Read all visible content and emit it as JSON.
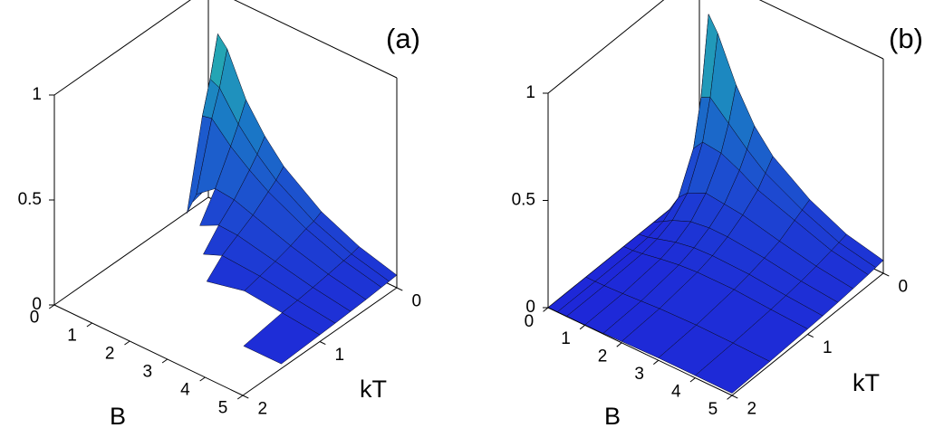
{
  "chart_data": [
    {
      "type": "surface",
      "title": "(a)",
      "x_label": "B",
      "y_label": "kT",
      "x": [
        0,
        0.25,
        0.5,
        1,
        1.5,
        2,
        3,
        4,
        5
      ],
      "y": [
        0,
        0.1,
        0.2,
        0.4,
        0.6,
        0.8,
        1,
        1.5,
        2
      ],
      "z": [
        [
          0.05,
          0.8,
          0.75,
          0.55,
          0.42,
          0.32,
          0.19,
          0.11,
          0.06
        ],
        [
          0.04,
          0.61,
          0.59,
          0.46,
          0.36,
          0.28,
          0.17,
          0.1,
          0.056
        ],
        [
          0.03,
          0.46,
          0.47,
          0.38,
          0.31,
          0.25,
          0.16,
          0.094,
          0.053
        ],
        [
          null,
          0.048,
          0.16,
          0.23,
          0.22,
          0.19,
          0.13,
          0.081,
          0.046
        ],
        [
          null,
          null,
          null,
          0.105,
          0.15,
          0.145,
          0.107,
          0.069,
          0.041
        ],
        [
          null,
          null,
          null,
          null,
          0.063,
          0.1,
          0.088,
          0.059,
          0.036
        ],
        [
          null,
          null,
          null,
          null,
          null,
          0.028,
          0.069,
          0.051,
          0.032
        ],
        [
          null,
          null,
          null,
          null,
          null,
          null,
          null,
          0.021,
          0.022
        ],
        [
          null,
          null,
          null,
          null,
          null,
          null,
          null,
          null,
          0.01
        ]
      ],
      "xlim": [
        0,
        5
      ],
      "ylim": [
        0,
        2
      ],
      "zlim": [
        0,
        1
      ],
      "xticks": [
        0,
        1,
        2,
        3,
        4,
        5
      ],
      "yticks": [
        0,
        1,
        2
      ],
      "zticks": [
        0,
        0.5,
        1
      ],
      "colormap": [
        "#1e28d8",
        "#1a7fc4",
        "#35e49a"
      ]
    },
    {
      "type": "surface",
      "title": "(b)",
      "x_label": "B",
      "y_label": "kT",
      "x": [
        0,
        0.25,
        0.5,
        1,
        1.5,
        2,
        3,
        4,
        5
      ],
      "y": [
        0,
        0.1,
        0.2,
        0.4,
        0.6,
        0.8,
        1,
        1.5,
        2
      ],
      "z": [
        [
          0,
          0.82,
          0.75,
          0.55,
          0.4,
          0.3,
          0.18,
          0.1,
          0.06
        ],
        [
          0,
          0.46,
          0.48,
          0.4,
          0.32,
          0.25,
          0.16,
          0.09,
          0.055
        ],
        [
          0,
          0.25,
          0.3,
          0.29,
          0.25,
          0.2,
          0.14,
          0.081,
          0.05
        ],
        [
          0,
          0.078,
          0.12,
          0.16,
          0.15,
          0.14,
          0.1,
          0.065,
          0.042
        ],
        [
          0,
          0.024,
          0.049,
          0.084,
          0.096,
          0.095,
          0.078,
          0.052,
          0.035
        ],
        [
          0,
          0.007,
          0.02,
          0.045,
          0.06,
          0.064,
          0.059,
          0.042,
          0.029
        ],
        [
          0,
          0.002,
          0.008,
          0.024,
          0.037,
          0.044,
          0.045,
          0.034,
          0.025
        ],
        [
          0,
          0,
          0.001,
          0.005,
          0.011,
          0.017,
          0.022,
          0.02,
          0.016
        ],
        [
          0,
          0,
          0,
          0.001,
          0.003,
          0.006,
          0.011,
          0.011,
          0.01
        ]
      ],
      "xlim": [
        0,
        5
      ],
      "ylim": [
        0,
        2
      ],
      "zlim": [
        0,
        1
      ],
      "xticks": [
        0,
        1,
        2,
        3,
        4,
        5
      ],
      "yticks": [
        0,
        1,
        2
      ],
      "zticks": [
        0,
        0.5,
        1
      ],
      "colormap": [
        "#1e28d8",
        "#1a7fc4",
        "#35e49a"
      ]
    }
  ]
}
